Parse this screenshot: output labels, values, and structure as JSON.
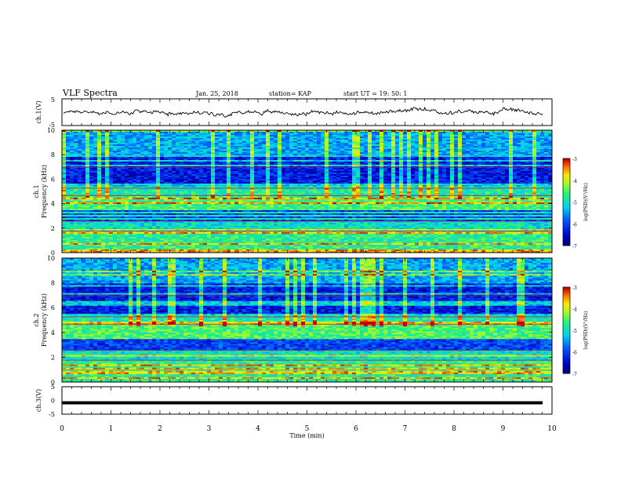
{
  "header": {
    "title": "VLF Spectra",
    "date": "Jan. 25, 2018",
    "station": "station= KAP",
    "start": "start  UT =   19: 50: 1"
  },
  "chart_data": [
    {
      "type": "line",
      "ylabel": "ch.1(V)",
      "ylim": [
        -5,
        5
      ],
      "yticks": [
        "5",
        "-5"
      ],
      "xlim": [
        0,
        10
      ],
      "signal": "noisy waveform oscillating roughly between -1 and 1 V",
      "series_color": "#000000"
    },
    {
      "type": "heatmap",
      "ylabel_line1": "ch.1",
      "ylabel_line2": "Frequency  (kHz)",
      "xlim": [
        0,
        10
      ],
      "ylim": [
        0,
        10
      ],
      "yticks": [
        "0",
        "2",
        "4",
        "6",
        "8",
        "10"
      ],
      "colorbar": {
        "label": "log(PSD)(V²/Hz)",
        "ticks": [
          "-3",
          "-4",
          "-5",
          "-6",
          "-7"
        ],
        "range": [
          -7,
          -3
        ]
      }
    },
    {
      "type": "heatmap",
      "ylabel_line1": "ch.2",
      "ylabel_line2": "Frequency  (kHz)",
      "xlim": [
        0,
        10
      ],
      "ylim": [
        0,
        10
      ],
      "yticks": [
        "0",
        "2",
        "4",
        "6",
        "8",
        "10"
      ],
      "colorbar": {
        "label": "log(PSD)(V²/Hz)",
        "ticks": [
          "-3",
          "-4",
          "-5",
          "-6",
          "-7"
        ],
        "range": [
          -7,
          -3
        ]
      }
    },
    {
      "type": "line",
      "ylabel": "ch.3(V)",
      "ylim": [
        -5,
        5
      ],
      "yticks": [
        "5",
        "0",
        "-5"
      ],
      "xlim": [
        0,
        10
      ],
      "xlabel": "Time  (min)",
      "xticks": [
        "0",
        "1",
        "2",
        "3",
        "4",
        "5",
        "6",
        "7",
        "8",
        "9",
        "10"
      ],
      "constant_value": 0,
      "series_color": "#000000"
    }
  ]
}
